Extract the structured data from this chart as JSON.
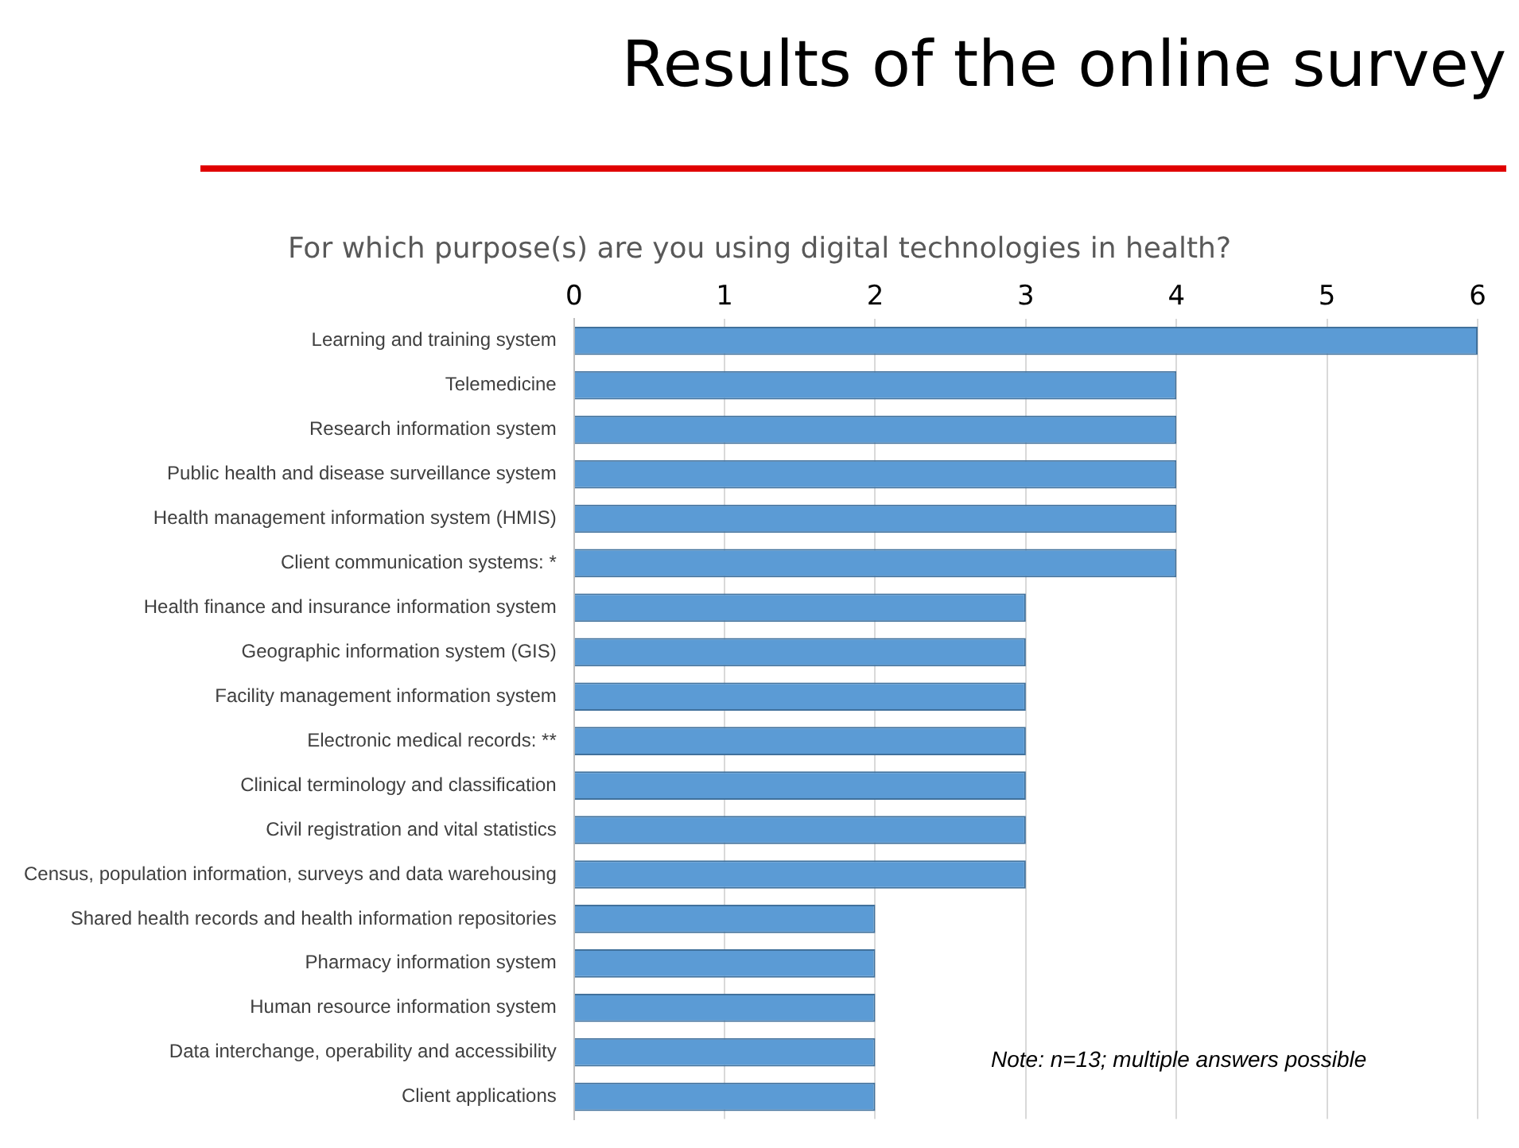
{
  "chart_data": {
    "type": "bar",
    "orientation": "horizontal",
    "title": "Results of the online survey",
    "subtitle": "For which purpose(s) are you using digital technologies in health?",
    "categories": [
      "Learning and training system",
      "Telemedicine",
      "Research information system",
      "Public health and disease surveillance system",
      "Health management information system (HMIS)",
      "Client communication systems: *",
      "Health finance and insurance information system",
      "Geographic information system (GIS)",
      "Facility management information system",
      "Electronic medical records: **",
      "Clinical terminology and classification",
      "Civil registration and vital statistics",
      "Census, population information, surveys and data warehousing",
      "Shared health records and health information repositories",
      "Pharmacy information system",
      "Human resource information system",
      "Data interchange, operability and accessibility",
      "Client applications"
    ],
    "values": [
      6,
      4,
      4,
      4,
      4,
      4,
      3,
      3,
      3,
      3,
      3,
      3,
      3,
      2,
      2,
      2,
      2,
      2
    ],
    "color": "#5b9bd5",
    "xlim": [
      0,
      6
    ],
    "xticks": [
      0,
      1,
      2,
      3,
      4,
      5,
      6
    ],
    "grid": "x",
    "legend": false,
    "annotations": [
      "Note: n=13; multiple answers possible"
    ]
  }
}
